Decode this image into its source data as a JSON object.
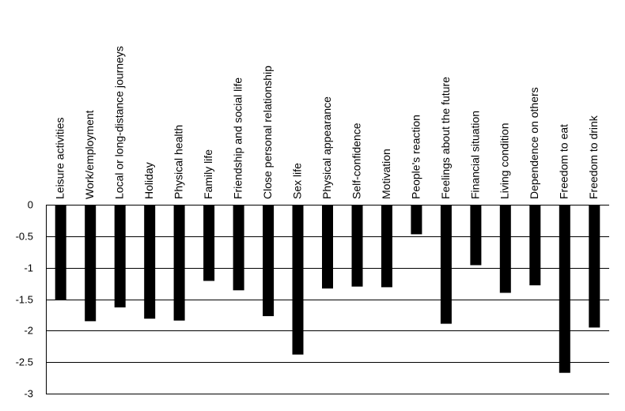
{
  "chart_data": {
    "type": "bar",
    "categories": [
      "Leisure activities",
      "Work/employment",
      "Local or long-distance journeys",
      "Holiday",
      "Physical health",
      "Family life",
      "Friendship and social life",
      "Close personal relationship",
      "Sex life",
      "Physical appearance",
      "Self-confidence",
      "Motivation",
      "People's reaction",
      "Feelings about the future",
      "Financial situation",
      "Living condition",
      "Dependence on others",
      "Freedom to eat",
      "Freedom to drink"
    ],
    "values": [
      -1.51,
      -1.85,
      -1.63,
      -1.81,
      -1.84,
      -1.21,
      -1.36,
      -1.77,
      -2.38,
      -1.33,
      -1.3,
      -1.31,
      -0.47,
      -1.89,
      -0.96,
      -1.4,
      -1.28,
      -2.67,
      -1.95
    ],
    "ylim": [
      -3,
      0
    ],
    "yticks": [
      0,
      -0.5,
      -1,
      -1.5,
      -2,
      -2.5,
      -3
    ],
    "ytick_labels": [
      "0",
      "-0.5",
      "-1",
      "-1.5",
      "-2",
      "-2.5",
      "-3"
    ],
    "grid": true,
    "bar_color": "#000000",
    "grid_color": "#000000"
  }
}
